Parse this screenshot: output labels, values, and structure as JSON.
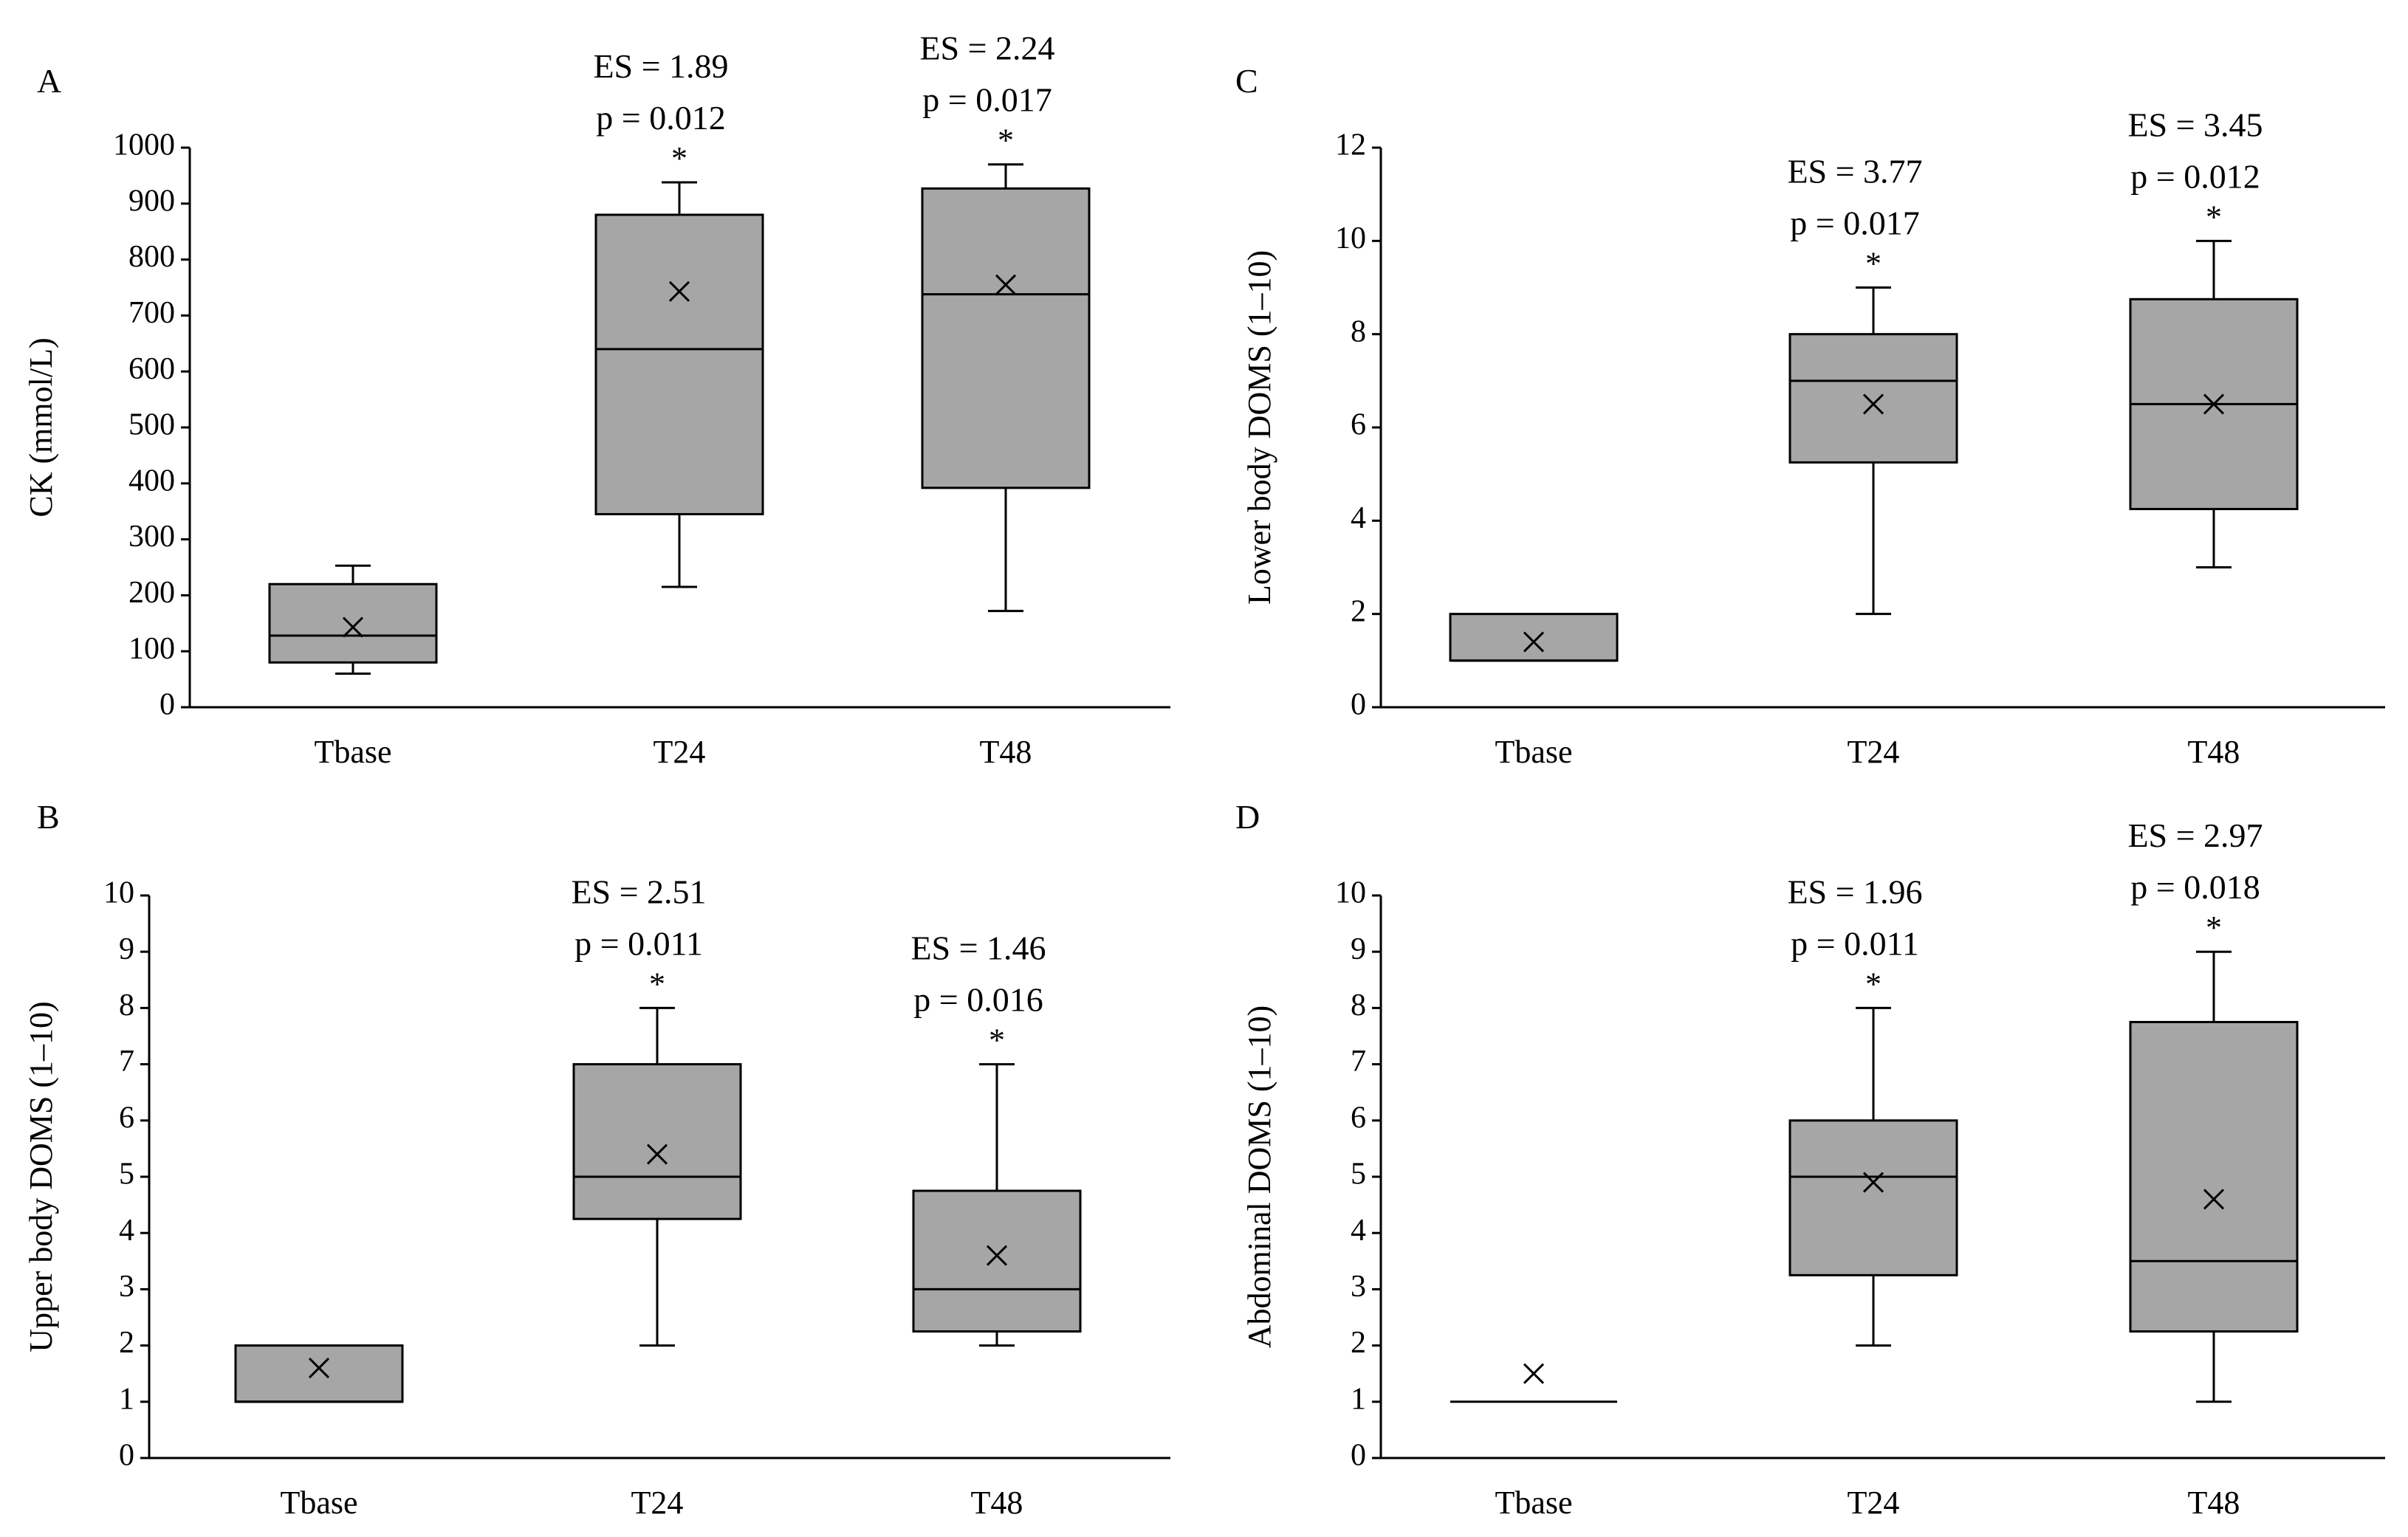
{
  "figure": {
    "background": "#ffffff",
    "box_fill": "#a6a6a6",
    "stroke": "#000000"
  },
  "chart_data": [
    {
      "id": "A",
      "panel_label": "A",
      "type": "boxplot",
      "ylabel": "CK (mmol/L)",
      "ylim": [
        0,
        1000
      ],
      "yticks": [
        0,
        100,
        200,
        300,
        400,
        500,
        600,
        700,
        800,
        900,
        1000
      ],
      "categories": [
        "Tbase",
        "T24",
        "T48"
      ],
      "boxes": [
        {
          "category": "Tbase",
          "min": 60,
          "q1": 80,
          "median": 128,
          "q3": 220,
          "max": 253,
          "mean": 143,
          "es": "",
          "p": "",
          "star": ""
        },
        {
          "category": "T24",
          "min": 215,
          "q1": 345,
          "median": 640,
          "q3": 880,
          "max": 938,
          "mean": 743,
          "es": "ES  = 1.89",
          "p": "p = 0.012",
          "star": "*"
        },
        {
          "category": "T48",
          "min": 172,
          "q1": 392,
          "median": 738,
          "q3": 927,
          "max": 970,
          "mean": 755,
          "es": "ES  = 2.24",
          "p": "p = 0.017",
          "star": "*"
        }
      ]
    },
    {
      "id": "B",
      "panel_label": "B",
      "type": "boxplot",
      "ylabel": "Upper body DOMS (1–10)",
      "ylim": [
        0,
        10
      ],
      "yticks": [
        0,
        1,
        2,
        3,
        4,
        5,
        6,
        7,
        8,
        9,
        10
      ],
      "categories": [
        "Tbase",
        "T24",
        "T48"
      ],
      "boxes": [
        {
          "category": "Tbase",
          "min": 1,
          "q1": 1,
          "median": 1,
          "q3": 2,
          "max": 2,
          "mean": 1.6,
          "es": "",
          "p": "",
          "star": ""
        },
        {
          "category": "T24",
          "min": 2,
          "q1": 4.25,
          "median": 5,
          "q3": 7,
          "max": 8,
          "mean": 5.4,
          "es": "ES  = 2.51",
          "p": "p = 0.011",
          "star": "*"
        },
        {
          "category": "T48",
          "min": 2,
          "q1": 2.25,
          "median": 3,
          "q3": 4.75,
          "max": 7,
          "mean": 3.6,
          "es": "ES  = 1.46",
          "p": "p = 0.016",
          "star": "*"
        }
      ]
    },
    {
      "id": "C",
      "panel_label": "C",
      "type": "boxplot",
      "ylabel": "Lower body DOMS (1–10)",
      "ylim": [
        0,
        12
      ],
      "yticks": [
        0,
        2,
        4,
        6,
        8,
        10,
        12
      ],
      "categories": [
        "Tbase",
        "T24",
        "T48"
      ],
      "boxes": [
        {
          "category": "Tbase",
          "min": 1,
          "q1": 1,
          "median": 1,
          "q3": 2,
          "max": 2,
          "mean": 1.4,
          "es": "",
          "p": "",
          "star": ""
        },
        {
          "category": "T24",
          "min": 2,
          "q1": 5.25,
          "median": 7,
          "q3": 8,
          "max": 9,
          "mean": 6.5,
          "es": "ES  = 3.77",
          "p": "p = 0.017",
          "star": "*"
        },
        {
          "category": "T48",
          "min": 3,
          "q1": 4.25,
          "median": 6.5,
          "q3": 8.75,
          "max": 10,
          "mean": 6.5,
          "es": "ES  = 3.45",
          "p": "p = 0.012",
          "star": "*"
        }
      ]
    },
    {
      "id": "D",
      "panel_label": "D",
      "type": "boxplot",
      "ylabel": "Abdominal DOMS (1–10)",
      "ylim": [
        0,
        10
      ],
      "yticks": [
        0,
        1,
        2,
        3,
        4,
        5,
        6,
        7,
        8,
        9,
        10
      ],
      "categories": [
        "Tbase",
        "T24",
        "T48"
      ],
      "boxes": [
        {
          "category": "Tbase",
          "min": 1,
          "q1": 1,
          "median": 1,
          "q3": 1,
          "max": 1,
          "mean": 1.5,
          "es": "",
          "p": "",
          "star": ""
        },
        {
          "category": "T24",
          "min": 2,
          "q1": 3.25,
          "median": 5,
          "q3": 6,
          "max": 8,
          "mean": 4.9,
          "es": "ES  = 1.96",
          "p": "p = 0.011",
          "star": "*"
        },
        {
          "category": "T48",
          "min": 1,
          "q1": 2.25,
          "median": 3.5,
          "q3": 7.75,
          "max": 9,
          "mean": 4.6,
          "es": "ES  = 2.97",
          "p": "p = 0.018",
          "star": "*"
        }
      ]
    }
  ]
}
